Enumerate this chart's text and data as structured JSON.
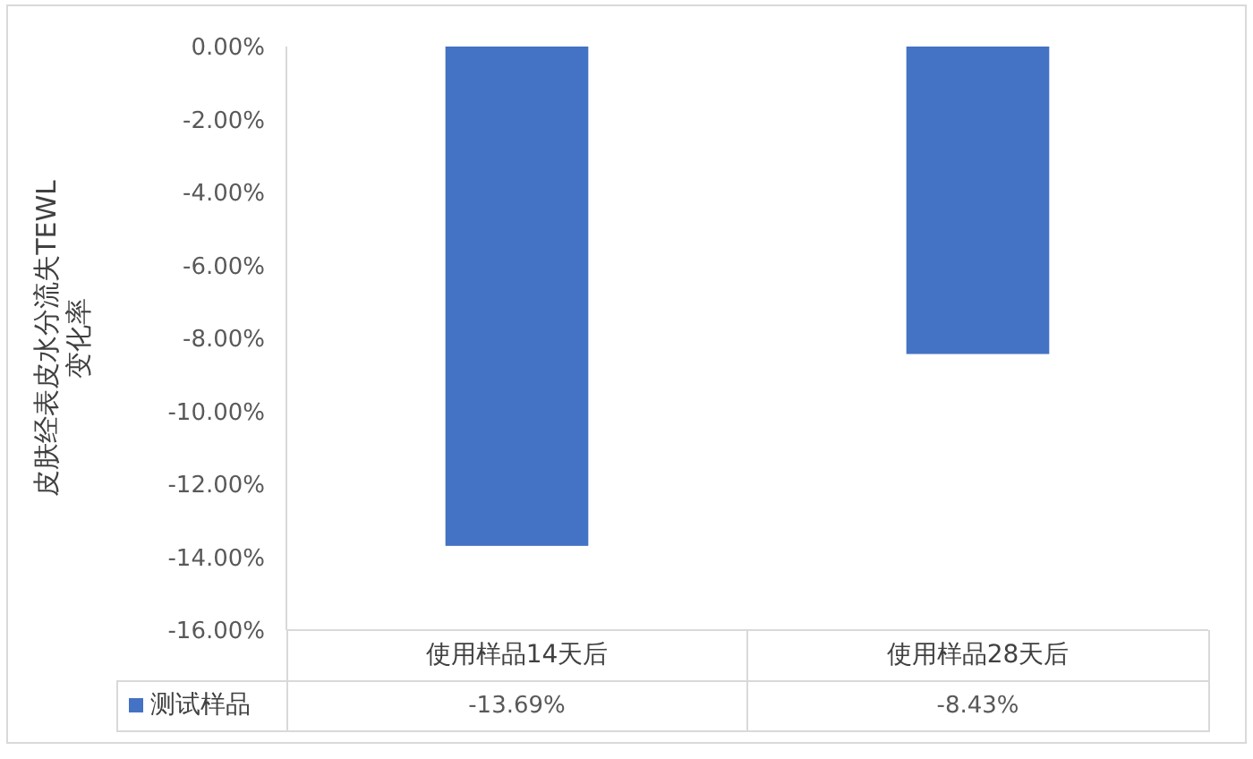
{
  "chart_data": {
    "type": "bar",
    "ylabel": "皮肤经表皮水分流失TEWL\n变化率",
    "categories": [
      "使用样品14天后",
      "使用样品28天后"
    ],
    "series": [
      {
        "name": "测试样品",
        "color": "#4472c4",
        "values": [
          -13.69,
          -8.43
        ],
        "value_labels": [
          "-13.69%",
          "-8.43%"
        ]
      }
    ],
    "ylim": [
      -16,
      0
    ],
    "yticks": [
      {
        "value": 0,
        "label": "0.00%"
      },
      {
        "value": -2,
        "label": "-2.00%"
      },
      {
        "value": -4,
        "label": "-4.00%"
      },
      {
        "value": -6,
        "label": "-6.00%"
      },
      {
        "value": -8,
        "label": "-8.00%"
      },
      {
        "value": -10,
        "label": "-10.00%"
      },
      {
        "value": -12,
        "label": "-12.00%"
      },
      {
        "value": -14,
        "label": "-14.00%"
      },
      {
        "value": -16,
        "label": "-16.00%"
      }
    ],
    "legend": "bottom"
  }
}
